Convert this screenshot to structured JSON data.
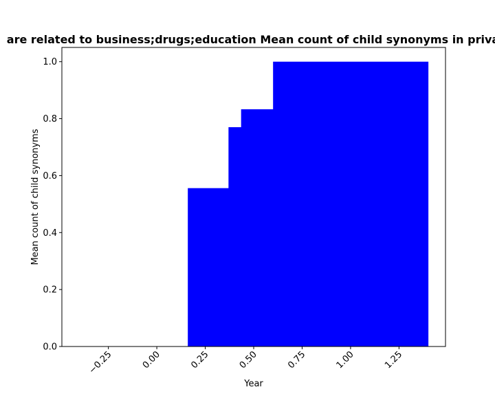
{
  "chart_data": {
    "type": "area",
    "title": "are related to business;drugs;education Mean count of child synonyms in priva",
    "xlabel": "Year",
    "ylabel": "Mean count of child synonyms",
    "xlim": [
      -0.49,
      1.49
    ],
    "ylim": [
      0.0,
      1.05
    ],
    "xticks": [
      -0.25,
      0.0,
      0.25,
      0.5,
      0.75,
      1.0,
      1.25
    ],
    "xtick_labels": [
      "−0.25",
      "0.00",
      "0.25",
      "0.50",
      "0.75",
      "1.00",
      "1.25"
    ],
    "yticks": [
      0.0,
      0.2,
      0.4,
      0.6,
      0.8,
      1.0
    ],
    "ytick_labels": [
      "0.0",
      "0.2",
      "0.4",
      "0.6",
      "0.8",
      "1.0"
    ],
    "grid": false,
    "color": "#0000ff",
    "steps": [
      {
        "x0": 0.16,
        "x1": 0.37,
        "y": 0.556
      },
      {
        "x0": 0.37,
        "x1": 0.435,
        "y": 0.77
      },
      {
        "x0": 0.435,
        "x1": 0.6,
        "y": 0.833
      },
      {
        "x0": 0.6,
        "x1": 1.4,
        "y": 1.0
      }
    ]
  }
}
